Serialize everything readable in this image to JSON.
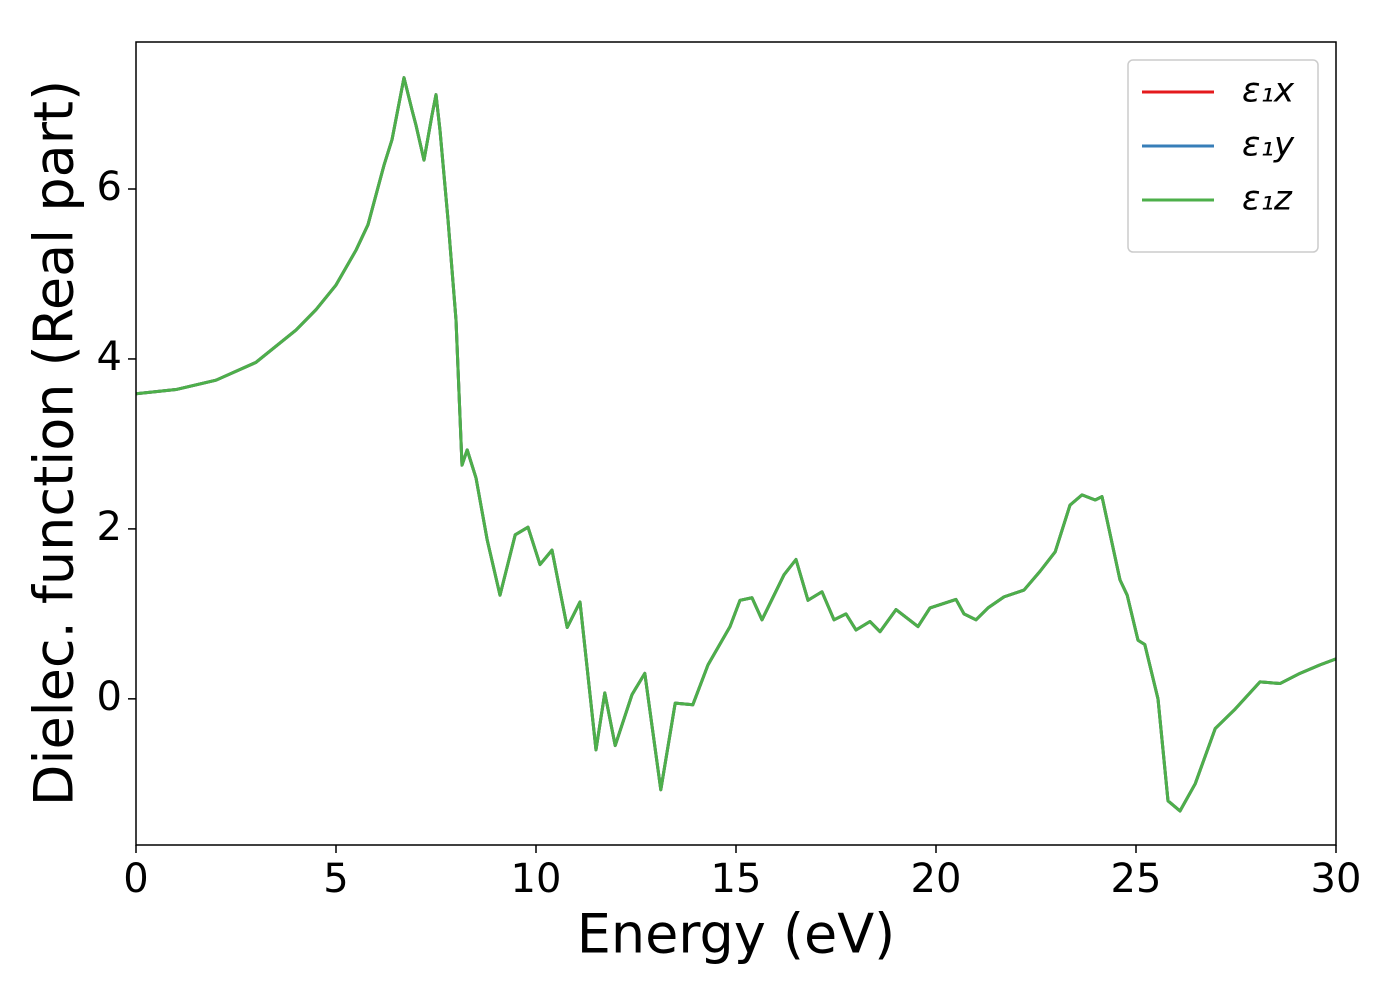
{
  "chart_data": {
    "type": "line",
    "xlabel": "Energy (eV)",
    "ylabel": "Dielec. function (Real part)",
    "x": [
      0,
      1,
      2,
      3,
      4,
      4.5,
      5,
      5.5,
      5.8,
      6,
      6.2,
      6.4,
      6.7,
      6.9,
      7,
      7.2,
      7.4,
      7.5,
      7.6,
      7.8,
      8,
      8.15,
      8.28,
      8.5,
      8.78,
      9.1,
      9.48,
      9.8,
      10.1,
      10.4,
      10.78,
      11.1,
      11.5,
      11.72,
      11.98,
      12.4,
      12.72,
      13.12,
      13.48,
      13.92,
      14.3,
      14.85,
      15.1,
      15.4,
      15.65,
      16.2,
      16.5,
      16.8,
      17.15,
      17.45,
      17.75,
      18,
      18.35,
      18.6,
      19,
      19.55,
      19.85,
      20.5,
      20.7,
      21,
      21.3,
      21.7,
      22.2,
      22.6,
      22.98,
      23.35,
      23.65,
      23.98,
      24.15,
      24.6,
      24.78,
      25.05,
      25.22,
      25.55,
      25.8,
      26.1,
      26.48,
      26.98,
      27.48,
      28.1,
      28.6,
      29.1,
      29.6,
      30
    ],
    "series": [
      {
        "name": "ε₁x",
        "color": "#e41a1c",
        "values": [
          3.59,
          3.64,
          3.75,
          3.96,
          4.34,
          4.58,
          4.87,
          5.28,
          5.58,
          5.93,
          6.28,
          6.58,
          7.31,
          6.93,
          6.75,
          6.34,
          6.87,
          7.11,
          6.69,
          5.64,
          4.46,
          2.75,
          2.93,
          2.6,
          1.87,
          1.22,
          1.93,
          2.02,
          1.58,
          1.75,
          0.84,
          1.14,
          -0.6,
          0.07,
          -0.55,
          0.05,
          0.3,
          -1.07,
          -0.05,
          -0.07,
          0.4,
          0.85,
          1.16,
          1.19,
          0.93,
          1.46,
          1.64,
          1.16,
          1.26,
          0.93,
          1.0,
          0.81,
          0.91,
          0.79,
          1.05,
          0.85,
          1.07,
          1.17,
          1.0,
          0.93,
          1.07,
          1.2,
          1.28,
          1.5,
          1.73,
          2.28,
          2.4,
          2.34,
          2.38,
          1.4,
          1.22,
          0.69,
          0.64,
          0,
          -1.2,
          -1.32,
          -1.0,
          -0.35,
          -0.12,
          0.2,
          0.18,
          0.3,
          0.4,
          0.47
        ]
      },
      {
        "name": "ε₁y",
        "color": "#377eb8",
        "values": [
          3.59,
          3.64,
          3.75,
          3.96,
          4.34,
          4.58,
          4.87,
          5.28,
          5.58,
          5.93,
          6.28,
          6.58,
          7.31,
          6.93,
          6.75,
          6.34,
          6.87,
          7.11,
          6.69,
          5.64,
          4.46,
          2.75,
          2.93,
          2.6,
          1.87,
          1.22,
          1.93,
          2.02,
          1.58,
          1.75,
          0.84,
          1.14,
          -0.6,
          0.07,
          -0.55,
          0.05,
          0.3,
          -1.07,
          -0.05,
          -0.07,
          0.4,
          0.85,
          1.16,
          1.19,
          0.93,
          1.46,
          1.64,
          1.16,
          1.26,
          0.93,
          1.0,
          0.81,
          0.91,
          0.79,
          1.05,
          0.85,
          1.07,
          1.17,
          1.0,
          0.93,
          1.07,
          1.2,
          1.28,
          1.5,
          1.73,
          2.28,
          2.4,
          2.34,
          2.38,
          1.4,
          1.22,
          0.69,
          0.64,
          0,
          -1.2,
          -1.32,
          -1.0,
          -0.35,
          -0.12,
          0.2,
          0.18,
          0.3,
          0.4,
          0.47
        ]
      },
      {
        "name": "ε₁z",
        "color": "#4daf4a",
        "values": [
          3.59,
          3.64,
          3.75,
          3.96,
          4.34,
          4.58,
          4.87,
          5.28,
          5.58,
          5.93,
          6.28,
          6.58,
          7.31,
          6.93,
          6.75,
          6.34,
          6.87,
          7.11,
          6.69,
          5.64,
          4.46,
          2.75,
          2.93,
          2.6,
          1.87,
          1.22,
          1.93,
          2.02,
          1.58,
          1.75,
          0.84,
          1.14,
          -0.6,
          0.07,
          -0.55,
          0.05,
          0.3,
          -1.07,
          -0.05,
          -0.07,
          0.4,
          0.85,
          1.16,
          1.19,
          0.93,
          1.46,
          1.64,
          1.16,
          1.26,
          0.93,
          1.0,
          0.81,
          0.91,
          0.79,
          1.05,
          0.85,
          1.07,
          1.17,
          1.0,
          0.93,
          1.07,
          1.2,
          1.28,
          1.5,
          1.73,
          2.28,
          2.4,
          2.34,
          2.38,
          1.4,
          1.22,
          0.69,
          0.64,
          0,
          -1.2,
          -1.32,
          -1.0,
          -0.35,
          -0.12,
          0.2,
          0.18,
          0.3,
          0.4,
          0.47
        ]
      }
    ],
    "xlim": [
      0,
      30
    ],
    "xticks": [
      0,
      5,
      10,
      15,
      20,
      25,
      30
    ],
    "ylim": [
      -1.72,
      7.73
    ],
    "yticks": [
      0,
      2,
      4,
      6
    ],
    "grid": false,
    "legend": "upper right"
  }
}
